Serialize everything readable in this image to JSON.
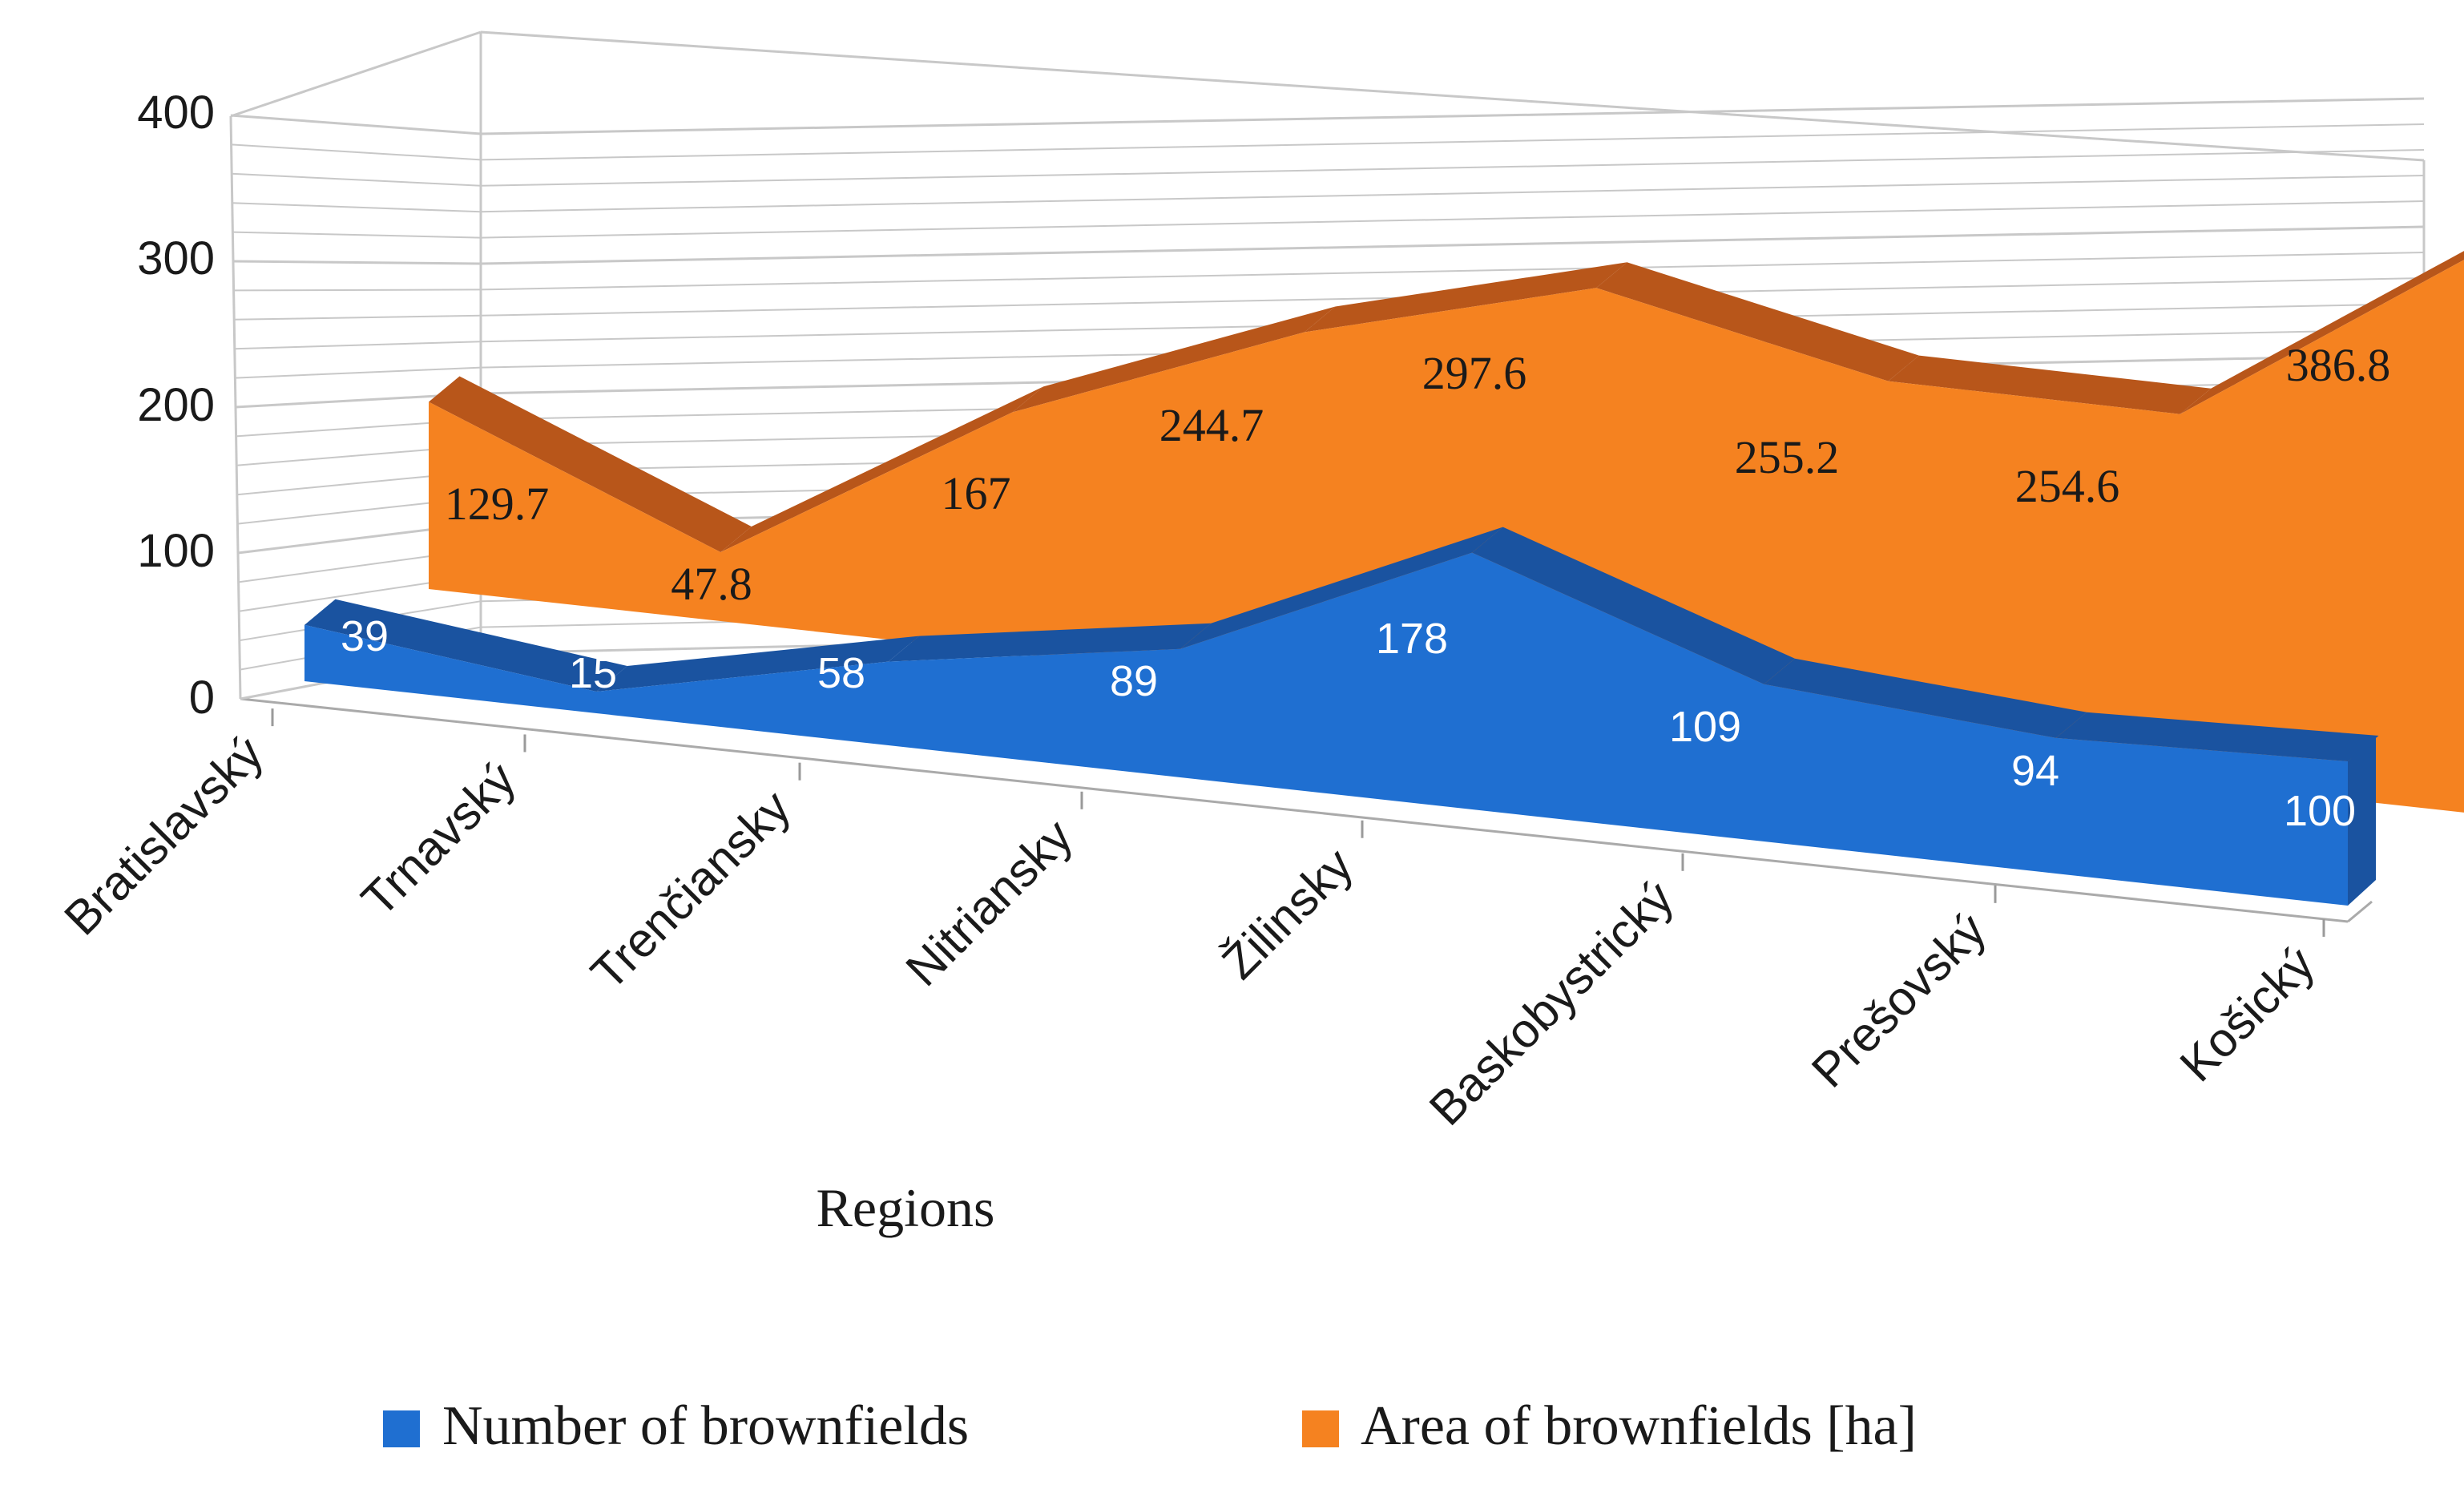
{
  "chart_data": {
    "type": "area",
    "variant": "3d-area",
    "title": "",
    "xlabel": "Regions",
    "ylabel": "",
    "ylim": [
      0,
      400
    ],
    "yticks": [
      0,
      100,
      200,
      300,
      400
    ],
    "ytick_labels": [
      "0",
      "100",
      "200",
      "300",
      "400"
    ],
    "grid": true,
    "legend_position": "bottom",
    "categories": [
      "Bratislavský",
      "Trnavský",
      "Trenčiansky",
      "Nitriansky",
      "Žilinsky",
      "Baskobystrický",
      "Prešovský",
      "Košický"
    ],
    "series": [
      {
        "name": "Number of brownfields",
        "color": "#1f6fd1",
        "values": [
          39,
          15,
          58,
          89,
          178,
          109,
          94,
          100
        ],
        "labels": [
          "39",
          "15",
          "58",
          "89",
          "178",
          "109",
          "94",
          "100"
        ]
      },
      {
        "name": "Area of brownfields [ha]",
        "color": "#f58220",
        "values": [
          129.7,
          47.8,
          167,
          244.7,
          297.6,
          255.2,
          254.6,
          386.8
        ],
        "labels": [
          "129.7",
          "47.8",
          "167",
          "244.7",
          "297.6",
          "255.2",
          "254.6",
          "386.8"
        ]
      }
    ]
  },
  "colors": {
    "front_series": "#1f6fd1",
    "front_series_top": "#1a53a0",
    "back_series": "#f58220",
    "back_series_top": "#b8561a",
    "grid": "#c8c8c8",
    "axis_text": "#1a1a1a"
  }
}
